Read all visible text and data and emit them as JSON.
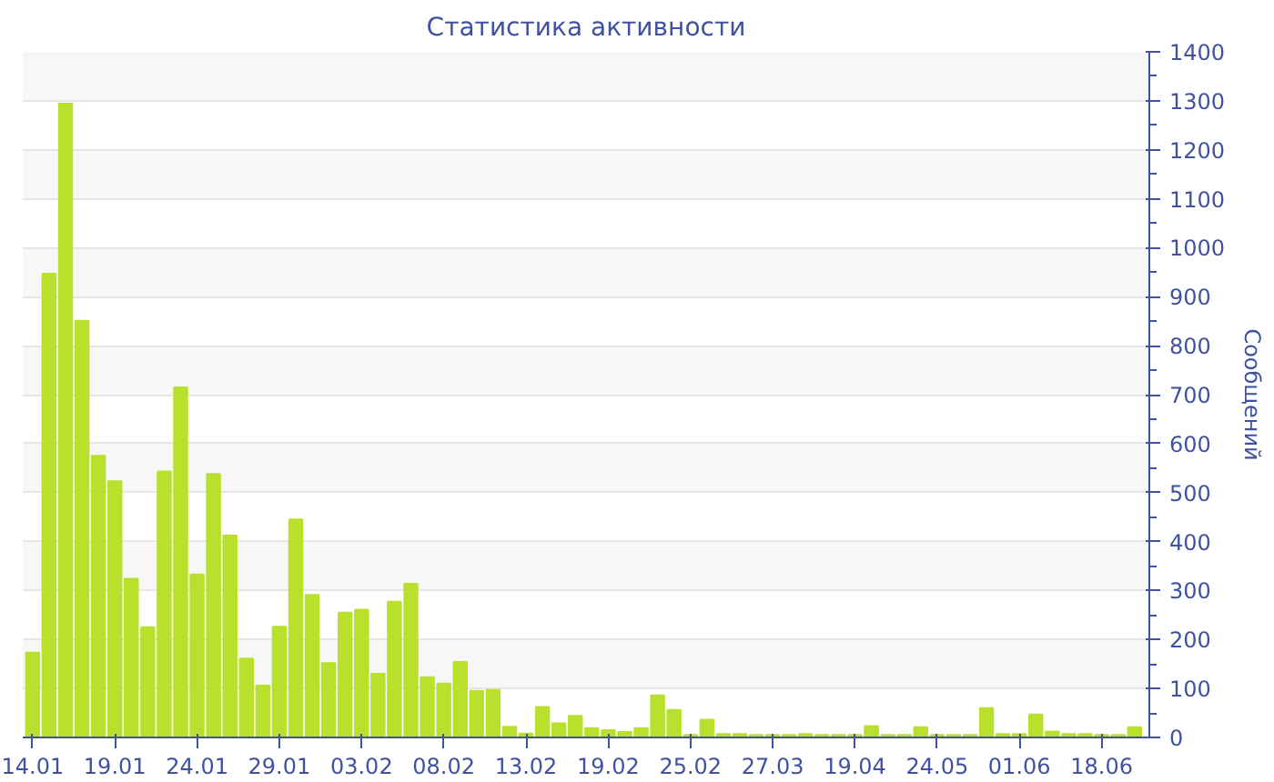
{
  "chart_data": {
    "type": "bar",
    "title": "Статистика активности",
    "ylabel": "Сообщений",
    "categories": [
      "14.01",
      null,
      null,
      null,
      null,
      "19.01",
      null,
      null,
      null,
      null,
      "24.01",
      null,
      null,
      null,
      null,
      "29.01",
      null,
      null,
      null,
      null,
      "03.02",
      null,
      null,
      null,
      null,
      "08.02",
      null,
      null,
      null,
      null,
      "13.02",
      null,
      null,
      null,
      null,
      "19.02",
      null,
      null,
      null,
      null,
      "25.02",
      null,
      null,
      null,
      null,
      "27.03",
      null,
      null,
      null,
      null,
      "19.04",
      null,
      null,
      null,
      null,
      "24.05",
      null,
      null,
      null,
      null,
      "01.06",
      null,
      null,
      null,
      null,
      "18.06",
      null,
      null
    ],
    "values": [
      173,
      947,
      1294,
      851,
      575,
      523,
      324,
      225,
      543,
      715,
      333,
      538,
      412,
      161,
      106,
      226,
      445,
      291,
      152,
      255,
      261,
      130,
      277,
      314,
      123,
      110,
      154,
      95,
      97,
      22,
      8,
      62,
      29,
      44,
      19,
      15,
      11,
      19,
      86,
      56,
      5,
      36,
      7,
      7,
      5,
      5,
      5,
      7,
      5,
      5,
      5,
      23,
      5,
      5,
      21,
      5,
      5,
      5,
      60,
      7,
      7,
      47,
      12,
      7,
      7,
      5,
      5,
      21
    ],
    "color": "#b8e02c",
    "ylim": [
      0,
      1400
    ],
    "yticks": [
      0,
      100,
      200,
      300,
      400,
      500,
      600,
      700,
      800,
      900,
      1000,
      1100,
      1200,
      1300,
      1400
    ],
    "grid": "y"
  }
}
